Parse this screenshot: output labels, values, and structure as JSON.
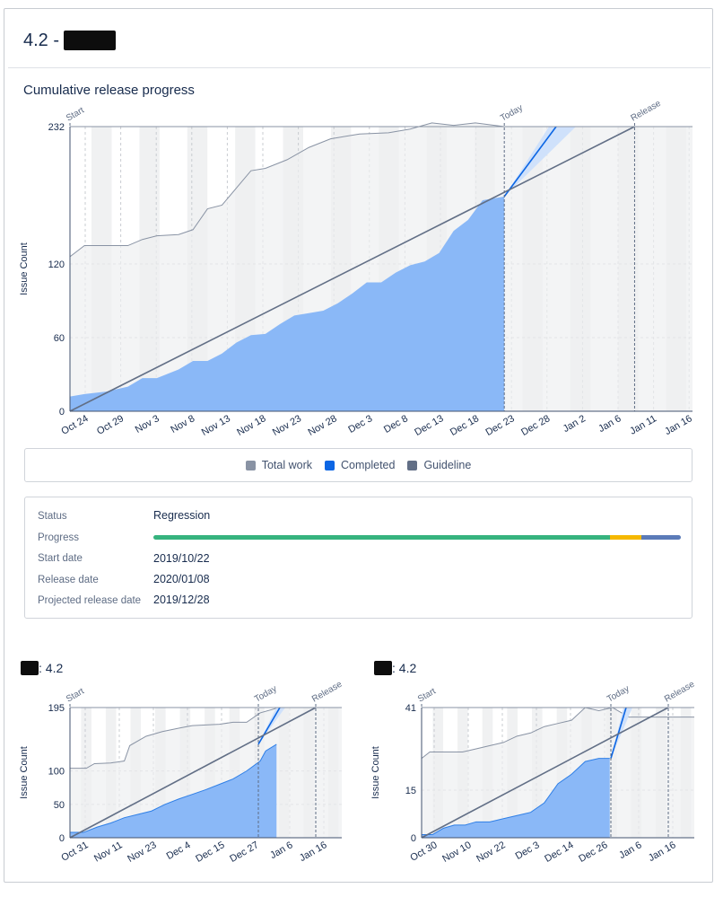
{
  "header": {
    "title": "4.2 -"
  },
  "section_title": "Cumulative release progress",
  "legend": {
    "items": [
      {
        "label": "Total work",
        "color": "#8993a4"
      },
      {
        "label": "Completed",
        "color": "#0c66e4"
      },
      {
        "label": "Guideline",
        "color": "#626f86"
      }
    ]
  },
  "details": {
    "status_label": "Status",
    "status_value": "Regression",
    "progress_label": "Progress",
    "progress_segments": [
      {
        "fraction": 0.866,
        "color": "#36b37e"
      },
      {
        "fraction": 0.059,
        "color": "#f5b800"
      },
      {
        "fraction": 0.075,
        "color": "#5b7bb8"
      }
    ],
    "start_date_label": "Start date",
    "start_date_value": "2019/10/22",
    "release_date_label": "Release date",
    "release_date_value": "2020/01/08",
    "projected_label": "Projected release date",
    "projected_value": "2019/12/28"
  },
  "sub_charts": [
    {
      "title_suffix": ": 4.2"
    },
    {
      "title_suffix": ": 4.2"
    }
  ],
  "chart_data": [
    {
      "type": "area",
      "title": "",
      "ylabel": "Issue Count",
      "ylim": [
        0,
        232
      ],
      "yticks": [
        0,
        60,
        120,
        232
      ],
      "x_tick_labels": [
        "Oct 24",
        "Oct 29",
        "Nov 3",
        "Nov 8",
        "Nov 13",
        "Nov 18",
        "Nov 23",
        "Nov 28",
        "Dec 3",
        "Dec 8",
        "Dec 13",
        "Dec 18",
        "Dec 23",
        "Dec 28",
        "Jan 2",
        "Jan 6",
        "Jan 11",
        "Jan 16"
      ],
      "markers": [
        "Start",
        "Today",
        "Release"
      ],
      "x_range": [
        "2019-10-22",
        "2020-01-16"
      ],
      "today": "2019-12-21",
      "release": "2020-01-08",
      "series": [
        {
          "name": "Total work",
          "x": [
            "2019-10-22",
            "2019-10-24",
            "2019-10-27",
            "2019-10-30",
            "2019-11-01",
            "2019-11-03",
            "2019-11-06",
            "2019-11-08",
            "2019-11-10",
            "2019-11-12",
            "2019-11-14",
            "2019-11-16",
            "2019-11-18",
            "2019-11-21",
            "2019-11-24",
            "2019-11-27",
            "2019-12-01",
            "2019-12-05",
            "2019-12-08",
            "2019-12-11",
            "2019-12-14",
            "2019-12-17",
            "2019-12-21",
            "2020-01-16"
          ],
          "values": [
            126,
            135,
            135,
            135,
            140,
            143,
            144,
            148,
            165,
            168,
            182,
            196,
            198,
            205,
            215,
            222,
            226,
            227,
            230,
            235,
            233,
            235,
            232,
            232
          ]
        },
        {
          "name": "Completed",
          "x": [
            "2019-10-22",
            "2019-10-24",
            "2019-10-27",
            "2019-10-30",
            "2019-11-01",
            "2019-11-03",
            "2019-11-06",
            "2019-11-08",
            "2019-11-10",
            "2019-11-12",
            "2019-11-14",
            "2019-11-16",
            "2019-11-18",
            "2019-11-20",
            "2019-11-22",
            "2019-11-24",
            "2019-11-26",
            "2019-11-28",
            "2019-11-30",
            "2019-12-02",
            "2019-12-04",
            "2019-12-06",
            "2019-12-08",
            "2019-12-10",
            "2019-12-12",
            "2019-12-14",
            "2019-12-16",
            "2019-12-18",
            "2019-12-21"
          ],
          "values": [
            12,
            14,
            16,
            20,
            27,
            27,
            34,
            41,
            41,
            47,
            56,
            62,
            63,
            71,
            78,
            80,
            82,
            88,
            96,
            105,
            105,
            113,
            119,
            122,
            129,
            147,
            156,
            172,
            175
          ]
        },
        {
          "name": "Guideline",
          "x": [
            "2019-10-22",
            "2020-01-08"
          ],
          "values": [
            0,
            232
          ]
        }
      ]
    },
    {
      "type": "area",
      "title": "",
      "ylabel": "Issue Count",
      "ylim": [
        0,
        195
      ],
      "yticks": [
        0,
        50,
        100,
        195
      ],
      "x_tick_labels": [
        "Oct 31",
        "Nov 11",
        "Nov 23",
        "Dec 4",
        "Dec 15",
        "Dec 27",
        "Jan 6",
        "Jan 16"
      ],
      "markers": [
        "Start",
        "Today",
        "Release"
      ]
    },
    {
      "type": "area",
      "title": "",
      "ylabel": "Issue Count",
      "ylim": [
        0,
        41
      ],
      "yticks": [
        0,
        15,
        41
      ],
      "x_tick_labels": [
        "Oct 30",
        "Nov 10",
        "Nov 22",
        "Dec 3",
        "Dec 14",
        "Dec 26",
        "Jan 6",
        "Jan 16"
      ],
      "markers": [
        "Start",
        "Today",
        "Release"
      ]
    }
  ]
}
